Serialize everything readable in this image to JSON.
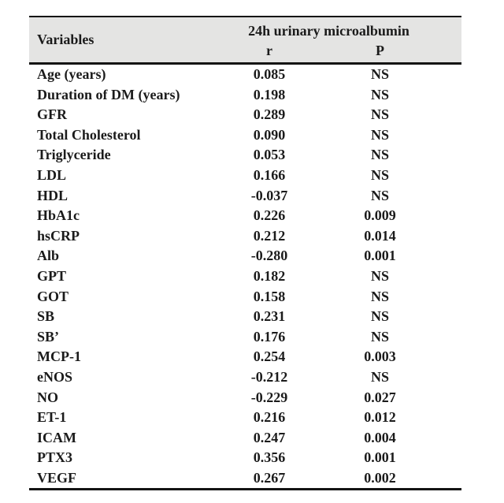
{
  "table": {
    "header": {
      "variables_label": "Variables",
      "group_label": "24h urinary microalbumin",
      "r_label": "r",
      "p_label": "P"
    },
    "rows": [
      {
        "variable": "Age (years)",
        "r": "0.085",
        "p": "NS"
      },
      {
        "variable": "Duration of DM (years)",
        "r": "0.198",
        "p": "NS"
      },
      {
        "variable": "GFR",
        "r": "0.289",
        "p": "NS"
      },
      {
        "variable": "Total Cholesterol",
        "r": "0.090",
        "p": "NS"
      },
      {
        "variable": "Triglyceride",
        "r": "0.053",
        "p": "NS"
      },
      {
        "variable": "LDL",
        "r": "0.166",
        "p": "NS"
      },
      {
        "variable": "HDL",
        "r": "-0.037",
        "p": "NS"
      },
      {
        "variable": "HbA1c",
        "r": "0.226",
        "p": "0.009"
      },
      {
        "variable": "hsCRP",
        "r": "0.212",
        "p": "0.014"
      },
      {
        "variable": "Alb",
        "r": "-0.280",
        "p": "0.001"
      },
      {
        "variable": "GPT",
        "r": "0.182",
        "p": "NS"
      },
      {
        "variable": "GOT",
        "r": "0.158",
        "p": "NS"
      },
      {
        "variable": "SB",
        "r": "0.231",
        "p": "NS"
      },
      {
        "variable": "SB’",
        "r": "0.176",
        "p": "NS"
      },
      {
        "variable": "MCP-1",
        "r": "0.254",
        "p": "0.003"
      },
      {
        "variable": "eNOS",
        "r": "-0.212",
        "p": "NS"
      },
      {
        "variable": "NO",
        "r": "-0.229",
        "p": "0.027"
      },
      {
        "variable": "ET-1",
        "r": "0.216",
        "p": "0.012"
      },
      {
        "variable": "ICAM",
        "r": "0.247",
        "p": "0.004"
      },
      {
        "variable": "PTX3",
        "r": "0.356",
        "p": "0.001"
      },
      {
        "variable": "VEGF",
        "r": "0.267",
        "p": "0.002"
      }
    ]
  },
  "colors": {
    "header_bg": "#e4e4e3",
    "text": "#1b1b1b",
    "rule": "#141414",
    "page_bg": "#ffffff"
  }
}
